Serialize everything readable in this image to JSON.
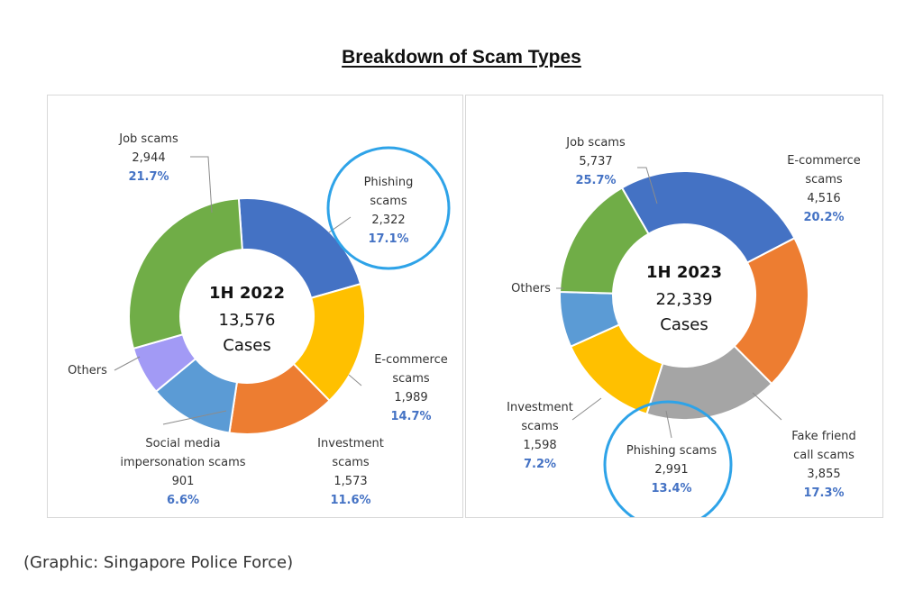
{
  "title": "Breakdown of Scam Types",
  "caption": "(Graphic: Singapore Police Force)",
  "chart_data": [
    {
      "type": "pie",
      "center": {
        "year": "1H 2022",
        "total": "13,576",
        "unit": "Cases"
      },
      "slices": [
        {
          "name": "Job scams",
          "name_lines": [
            "Job scams"
          ],
          "value_label": "2,944",
          "percent_label": "21.7%",
          "percent": 21.7,
          "color": "#4472c4"
        },
        {
          "name": "Phishing scams",
          "name_lines": [
            "Phishing",
            "scams"
          ],
          "value_label": "2,322",
          "percent_label": "17.1%",
          "percent": 17.1,
          "color": "#ffc000",
          "highlighted": true
        },
        {
          "name": "E-commerce scams",
          "name_lines": [
            "E-commerce",
            "scams"
          ],
          "value_label": "1,989",
          "percent_label": "14.7%",
          "percent": 14.7,
          "color": "#ed7d31"
        },
        {
          "name": "Investment scams",
          "name_lines": [
            "Investment",
            "scams"
          ],
          "value_label": "1,573",
          "percent_label": "11.6%",
          "percent": 11.6,
          "color": "#5b9bd5"
        },
        {
          "name": "Social media impersonation scams",
          "name_lines": [
            "Social media",
            "impersonation scams"
          ],
          "value_label": "901",
          "percent_label": "6.6%",
          "percent": 6.6,
          "color": "#a29af5"
        },
        {
          "name": "Others",
          "name_lines": [
            "Others"
          ],
          "value_label": "",
          "percent_label": "",
          "percent": 28.3,
          "color": "#70ad47"
        }
      ]
    },
    {
      "type": "pie",
      "center": {
        "year": "1H 2023",
        "total": "22,339",
        "unit": "Cases"
      },
      "slices": [
        {
          "name": "Job scams",
          "name_lines": [
            "Job scams"
          ],
          "value_label": "5,737",
          "percent_label": "25.7%",
          "percent": 25.7,
          "color": "#4472c4"
        },
        {
          "name": "E-commerce scams",
          "name_lines": [
            "E-commerce",
            "scams"
          ],
          "value_label": "4,516",
          "percent_label": "20.2%",
          "percent": 20.2,
          "color": "#ed7d31"
        },
        {
          "name": "Fake friend call scams",
          "name_lines": [
            "Fake friend",
            "call scams"
          ],
          "value_label": "3,855",
          "percent_label": "17.3%",
          "percent": 17.3,
          "color": "#a5a5a5"
        },
        {
          "name": "Phishing scams",
          "name_lines": [
            "Phishing scams"
          ],
          "value_label": "2,991",
          "percent_label": "13.4%",
          "percent": 13.4,
          "color": "#ffc000",
          "highlighted": true
        },
        {
          "name": "Investment scams",
          "name_lines": [
            "Investment",
            "scams"
          ],
          "value_label": "1,598",
          "percent_label": "7.2%",
          "percent": 7.2,
          "color": "#5b9bd5"
        },
        {
          "name": "Others",
          "name_lines": [
            "Others"
          ],
          "value_label": "",
          "percent_label": "",
          "percent": 16.2,
          "color": "#70ad47"
        }
      ]
    }
  ]
}
